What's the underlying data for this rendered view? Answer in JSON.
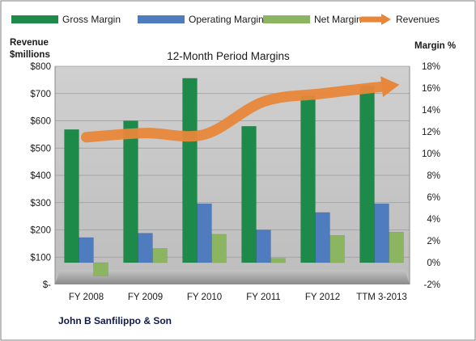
{
  "chart_data": {
    "type": "bar",
    "title": "12-Month Period Margins",
    "left_axis": {
      "label_line1": "Revenue",
      "label_line2": "$millions",
      "ylim": [
        0,
        800
      ],
      "ticks": [
        0,
        100,
        200,
        300,
        400,
        500,
        600,
        700,
        800
      ],
      "tick_labels": [
        "$-",
        "$100",
        "$200",
        "$300",
        "$400",
        "$500",
        "$600",
        "$700",
        "$800"
      ]
    },
    "right_axis": {
      "label": "Margin %",
      "ylim": [
        -2,
        18
      ],
      "ticks": [
        -2,
        0,
        2,
        4,
        6,
        8,
        10,
        12,
        14,
        16,
        18
      ],
      "tick_labels": [
        "-2%",
        "0%",
        "2%",
        "4%",
        "6%",
        "8%",
        "10%",
        "12%",
        "14%",
        "16%",
        "18%"
      ]
    },
    "categories": [
      "FY 2008",
      "FY 2009",
      "FY 2010",
      "FY 2011",
      "FY 2012",
      "TTM 3-2013"
    ],
    "series": [
      {
        "name": "Gross Margin",
        "type": "bar",
        "axis": "right",
        "color": "#1e8a4a",
        "values": [
          12.2,
          13.0,
          16.9,
          12.5,
          15.3,
          16.2
        ]
      },
      {
        "name": "Operating Margin",
        "type": "bar",
        "axis": "right",
        "color": "#4f7cbe",
        "values": [
          2.3,
          2.7,
          5.4,
          3.0,
          4.6,
          5.4
        ]
      },
      {
        "name": "Net Margin",
        "type": "bar",
        "axis": "right",
        "color": "#8cb561",
        "values": [
          -1.2,
          1.3,
          2.6,
          0.4,
          2.5,
          2.8
        ]
      },
      {
        "name": "Revenues",
        "type": "line",
        "axis": "left",
        "color": "#e8873a",
        "values": [
          540,
          555,
          550,
          670,
          700,
          725
        ]
      }
    ],
    "grid": true,
    "legend_position": "top",
    "footnote": "John B Sanfilippo & Son"
  }
}
